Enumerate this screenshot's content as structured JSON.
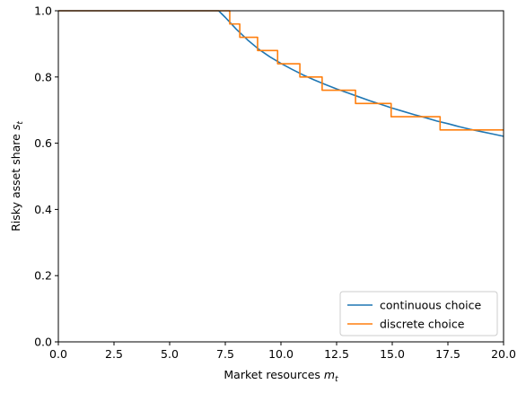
{
  "chart_data": {
    "type": "line",
    "xlabel": "Market resources ",
    "xlabel_symbol": "m",
    "xlabel_subscript": "t",
    "ylabel": "Risky asset share ",
    "ylabel_symbol": "s",
    "ylabel_subscript": "t",
    "xlim": [
      0,
      20
    ],
    "ylim": [
      0,
      1.0
    ],
    "xticks": [
      0,
      2.5,
      5,
      7.5,
      10,
      12.5,
      15,
      17.5,
      20
    ],
    "xtick_labels": [
      "0.0",
      "2.5",
      "5.0",
      "7.5",
      "10.0",
      "12.5",
      "15.0",
      "17.5",
      "20.0"
    ],
    "yticks": [
      0,
      0.2,
      0.4,
      0.6,
      0.8,
      1.0
    ],
    "ytick_labels": [
      "0.0",
      "0.2",
      "0.4",
      "0.6",
      "0.8",
      "1.0"
    ],
    "grid": false,
    "legend_position": "bottom-right",
    "series": [
      {
        "name": "continuous choice",
        "color": "#1f77b4",
        "style": "smooth",
        "x": [
          0,
          7.2,
          7.5,
          8,
          8.5,
          9,
          9.5,
          10,
          10.5,
          11,
          11.5,
          12,
          12.5,
          13,
          13.5,
          14,
          14.5,
          15,
          15.5,
          16,
          16.5,
          17,
          17.5,
          18,
          18.5,
          19,
          19.5,
          20
        ],
        "y": [
          1.0,
          1.0,
          0.98,
          0.944,
          0.912,
          0.884,
          0.861,
          0.841,
          0.823,
          0.806,
          0.791,
          0.777,
          0.764,
          0.752,
          0.74,
          0.728,
          0.717,
          0.706,
          0.696,
          0.686,
          0.677,
          0.667,
          0.659,
          0.65,
          0.642,
          0.635,
          0.628,
          0.621
        ]
      },
      {
        "name": "discrete choice",
        "color": "#ff7f0e",
        "style": "step",
        "x": [
          0,
          7.7,
          8.15,
          8.95,
          9.85,
          10.85,
          11.85,
          13.35,
          14.95,
          17.15,
          20
        ],
        "y": [
          1.0,
          0.96,
          0.92,
          0.88,
          0.84,
          0.8,
          0.76,
          0.72,
          0.68,
          0.64,
          0.64
        ]
      }
    ]
  }
}
